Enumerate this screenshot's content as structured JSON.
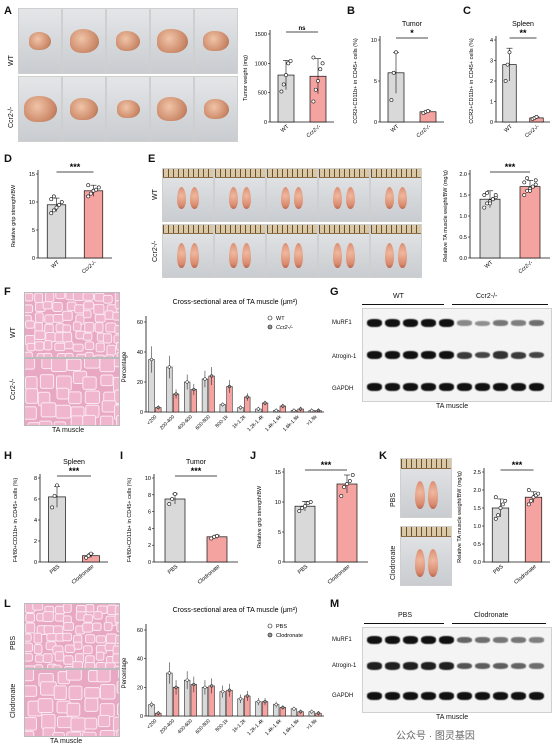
{
  "panel_letters": [
    "A",
    "B",
    "C",
    "D",
    "E",
    "F",
    "G",
    "H",
    "I",
    "J",
    "K",
    "L",
    "M"
  ],
  "panel_a": {
    "row_wt": "WT",
    "row_ko": "Ccr2-/-",
    "ylabel": "Tumor weight (mg)",
    "sig": "ns",
    "yticks": [
      "0",
      "500",
      "1000",
      "1500"
    ],
    "xcats": [
      "WT",
      "Ccr2-/-"
    ]
  },
  "panel_b": {
    "title": "Tumor",
    "ylabel": "CCR2+CD11b+ in CD45+ cells (%)",
    "sig": "*",
    "yticks": [
      "0",
      "5",
      "10"
    ],
    "xcats": [
      "WT",
      "Ccr2-/-"
    ]
  },
  "panel_c": {
    "title": "Spleen",
    "ylabel": "CCR2+CD11b+ in CD45+ cells (%)",
    "sig": "**",
    "yticks": [
      "0",
      "1",
      "2",
      "3",
      "4"
    ],
    "xcats": [
      "WT",
      "Ccr2-/-"
    ]
  },
  "panel_d": {
    "ylabel": "Relative grip strength/BW",
    "sig": "***",
    "yticks": [
      "0",
      "5",
      "10",
      "15"
    ],
    "xcats": [
      "WT",
      "Ccr2-/-"
    ]
  },
  "panel_e": {
    "row_wt": "WT",
    "row_ko": "Ccr2-/-",
    "ylabel": "Relative TA muscle weight/BW (mg/g)",
    "sig": "***",
    "yticks": [
      "0.0",
      "0.5",
      "1.0",
      "1.5",
      "2.0"
    ],
    "xcats": [
      "WT",
      "Ccr2-/-"
    ]
  },
  "panel_f": {
    "row_wt": "WT",
    "row_ko": "Ccr2-/-",
    "caption": "TA muscle",
    "chart_title": "Cross-sectional area of TA muscle (μm²)",
    "ylabel": "Percentage",
    "legend": [
      "WT",
      "Ccr2-/-"
    ],
    "yticks": [
      "0",
      "20",
      "40",
      "60"
    ]
  },
  "panel_g": {
    "header_wt": "WT",
    "header_ko": "Ccr2-/-",
    "rows": [
      "MuRF1",
      "Atrogin-1",
      "GAPDH"
    ],
    "caption": "TA muscle"
  },
  "panel_h": {
    "title": "Spleen",
    "ylabel": "F4/80+CD11b+ in CD45+ cells (%)",
    "sig": "***",
    "yticks": [
      "0",
      "2",
      "4",
      "6",
      "8"
    ],
    "xcats": [
      "PBS",
      "Clodronate"
    ]
  },
  "panel_i": {
    "title": "Tumor",
    "ylabel": "F4/80+CD11b+ in CD45+ cells (%)",
    "sig": "***",
    "yticks": [
      "0",
      "2",
      "4",
      "6",
      "8",
      "10"
    ],
    "xcats": [
      "PBS",
      "Clodronate"
    ]
  },
  "panel_j": {
    "ylabel": "Relative grip strength/BW",
    "sig": "***",
    "yticks": [
      "0",
      "5",
      "10",
      "15"
    ],
    "xcats": [
      "PBS",
      "Clodronate"
    ]
  },
  "panel_k": {
    "row_pbs": "PBS",
    "row_clo": "Clodronate",
    "ylabel": "Relative TA muscle weight/BW (mg/g)",
    "sig": "***",
    "yticks": [
      "0.0",
      "0.5",
      "1.0",
      "1.5",
      "2.0",
      "2.5"
    ],
    "xcats": [
      "PBS",
      "Clodronate"
    ]
  },
  "panel_l": {
    "row_pbs": "PBS",
    "row_clo": "Clodronate",
    "caption": "TA muscle",
    "chart_title": "Cross-sectional area of TA muscle (μm²)",
    "ylabel": "Percentage",
    "legend": [
      "PBS",
      "Clodronate"
    ],
    "yticks": [
      "0",
      "20",
      "40",
      "60"
    ]
  },
  "panel_m": {
    "header_pbs": "PBS",
    "header_clo": "Clodronate",
    "rows": [
      "MuRF1",
      "Atrogin-1",
      "GAPDH"
    ],
    "caption": "TA muscle"
  },
  "watermark": "公众号 · 图灵基因",
  "chart_data": [
    {
      "id": "A",
      "type": "bar",
      "categories": [
        "WT",
        "Ccr2-/-"
      ],
      "values": [
        800,
        780
      ],
      "errors": [
        250,
        300
      ],
      "points": [
        [
          520,
          640,
          800,
          1000,
          1040
        ],
        [
          350,
          550,
          700,
          900,
          1000,
          1100
        ]
      ],
      "ylim": [
        0,
        1500
      ],
      "colors": [
        "#d9d9d9",
        "#f4a3a0"
      ]
    },
    {
      "id": "B",
      "type": "bar",
      "categories": [
        "WT",
        "Ccr2-/-"
      ],
      "values": [
        7.2,
        1.5
      ],
      "errors": [
        3.0,
        0.2
      ],
      "points": [
        [
          3.2,
          7.2,
          10.2
        ],
        [
          1.3,
          1.5,
          1.6
        ]
      ],
      "ylim": [
        0,
        12
      ],
      "colors": [
        "#d9d9d9",
        "#f4a3a0"
      ]
    },
    {
      "id": "C",
      "type": "bar",
      "categories": [
        "WT",
        "Ccr2-/-"
      ],
      "values": [
        2.8,
        0.2
      ],
      "errors": [
        0.8,
        0.05
      ],
      "points": [
        [
          2.0,
          2.8,
          3.4
        ],
        [
          0.15,
          0.2,
          0.25
        ]
      ],
      "ylim": [
        0,
        4
      ],
      "colors": [
        "#d9d9d9",
        "#f4a3a0"
      ]
    },
    {
      "id": "D",
      "type": "bar",
      "categories": [
        "WT",
        "Ccr2-/-"
      ],
      "values": [
        9.5,
        12.0
      ],
      "errors": [
        1.2,
        1.0
      ],
      "points": [
        [
          8,
          8.5,
          9,
          9.5,
          10,
          10.5,
          11
        ],
        [
          11,
          11.5,
          12,
          12.2,
          12.6,
          13
        ]
      ],
      "ylim": [
        0,
        15
      ],
      "colors": [
        "#d9d9d9",
        "#f4a3a0"
      ]
    },
    {
      "id": "E",
      "type": "bar",
      "categories": [
        "WT",
        "Ccr2-/-"
      ],
      "values": [
        1.4,
        1.7
      ],
      "errors": [
        0.2,
        0.15
      ],
      "points": [
        [
          1.2,
          1.3,
          1.35,
          1.4,
          1.45,
          1.5,
          1.55,
          1.3,
          1.4,
          1.5
        ],
        [
          1.5,
          1.6,
          1.65,
          1.7,
          1.75,
          1.8,
          1.9,
          1.6,
          1.7,
          1.85
        ]
      ],
      "ylim": [
        0,
        2
      ],
      "colors": [
        "#d9d9d9",
        "#f4a3a0"
      ]
    },
    {
      "id": "F",
      "type": "bar",
      "categories": [
        "<200",
        "200-400",
        "400-600",
        "600-800",
        "800-1k",
        "1k-1.2k",
        "1.2k-1.4k",
        "1.4k-1.6k",
        "1.6k-1.8k",
        ">1.8k"
      ],
      "series": [
        {
          "name": "WT",
          "values": [
            35,
            30,
            20,
            22,
            5,
            3,
            2,
            1,
            1,
            1
          ]
        },
        {
          "name": "Ccr2-/-",
          "values": [
            3,
            12,
            15,
            24,
            17,
            10,
            6,
            4,
            2,
            1
          ]
        }
      ],
      "ylim": [
        0,
        60
      ],
      "colors": [
        "#d9d9d9",
        "#f4a3a0"
      ]
    },
    {
      "id": "H",
      "type": "bar",
      "categories": [
        "PBS",
        "Clodronate"
      ],
      "values": [
        6.2,
        0.6
      ],
      "errors": [
        1.0,
        0.2
      ],
      "points": [
        [
          5.2,
          6.3,
          7.3
        ],
        [
          0.4,
          0.6,
          0.8
        ]
      ],
      "ylim": [
        0,
        8
      ],
      "colors": [
        "#d9d9d9",
        "#f4a3a0"
      ]
    },
    {
      "id": "I",
      "type": "bar",
      "categories": [
        "PBS",
        "Clodronate"
      ],
      "values": [
        7.5,
        3.0
      ],
      "errors": [
        0.6,
        0.2
      ],
      "points": [
        [
          6.9,
          7.5,
          8.1
        ],
        [
          2.8,
          3.0,
          3.1
        ]
      ],
      "ylim": [
        0,
        10
      ],
      "colors": [
        "#d9d9d9",
        "#f4a3a0"
      ]
    },
    {
      "id": "J",
      "type": "bar",
      "categories": [
        "PBS",
        "Clodronate"
      ],
      "values": [
        9.3,
        13.0
      ],
      "errors": [
        0.8,
        1.5
      ],
      "points": [
        [
          8.5,
          9,
          9.3,
          9.8,
          10
        ],
        [
          11,
          12.5,
          13,
          13.5,
          14.5
        ]
      ],
      "ylim": [
        0,
        15
      ],
      "colors": [
        "#d9d9d9",
        "#f4a3a0"
      ]
    },
    {
      "id": "K",
      "type": "bar",
      "categories": [
        "PBS",
        "Clodronate"
      ],
      "values": [
        1.5,
        1.8
      ],
      "errors": [
        0.25,
        0.15
      ],
      "points": [
        [
          1.2,
          1.3,
          1.5,
          1.6,
          1.7,
          1.8
        ],
        [
          1.6,
          1.7,
          1.8,
          1.85,
          1.9,
          2.0
        ]
      ],
      "ylim": [
        0,
        2.5
      ],
      "colors": [
        "#d9d9d9",
        "#f4a3a0"
      ]
    },
    {
      "id": "L",
      "type": "bar",
      "categories": [
        "<200",
        "200-400",
        "400-600",
        "600-800",
        "800-1k",
        "1k-1.2k",
        "1.2k-1.4k",
        "1.4k-1.6k",
        "1.6k-1.8k",
        ">1.8k"
      ],
      "series": [
        {
          "name": "PBS",
          "values": [
            8,
            30,
            25,
            20,
            17,
            12,
            10,
            8,
            5,
            3
          ]
        },
        {
          "name": "Clodronate",
          "values": [
            2,
            20,
            22,
            21,
            18,
            14,
            10,
            6,
            3,
            2
          ]
        }
      ],
      "ylim": [
        0,
        60
      ],
      "colors": [
        "#d9d9d9",
        "#f4a3a0"
      ]
    }
  ]
}
